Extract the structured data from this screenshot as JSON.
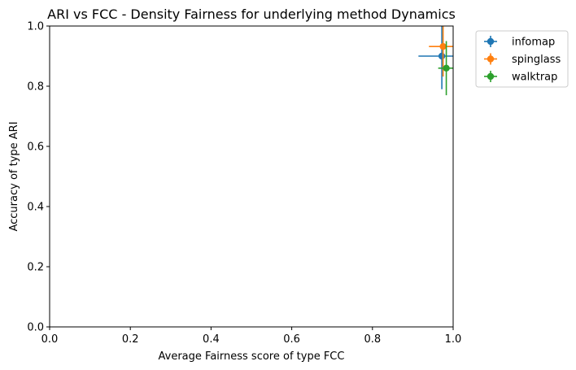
{
  "chart_data": {
    "type": "scatter",
    "title": "ARI vs FCC - Density Fairness for underlying method Dynamics",
    "xlabel": "Average Fairness score of type FCC",
    "ylabel": "Accuracy of type ARI",
    "xlim": [
      0,
      1
    ],
    "ylim": [
      0,
      1
    ],
    "x_ticks": [
      "0.0",
      "0.2",
      "0.4",
      "0.6",
      "0.8",
      "1.0"
    ],
    "y_ticks": [
      "0.0",
      "0.2",
      "0.4",
      "0.6",
      "0.8",
      "1.0"
    ],
    "grid": false,
    "legend_position": "outside-top-right",
    "series": [
      {
        "name": "infomap",
        "color": "#1f77b4",
        "x": 0.972,
        "y": 0.9,
        "xerr": 0.058,
        "yerr": 0.11
      },
      {
        "name": "spinglass",
        "color": "#ff7f0e",
        "x": 0.975,
        "y": 0.932,
        "xerr": 0.035,
        "yerr": 0.1
      },
      {
        "name": "walktrap",
        "color": "#2ca02c",
        "x": 0.983,
        "y": 0.86,
        "xerr": 0.02,
        "yerr": 0.09
      }
    ]
  }
}
